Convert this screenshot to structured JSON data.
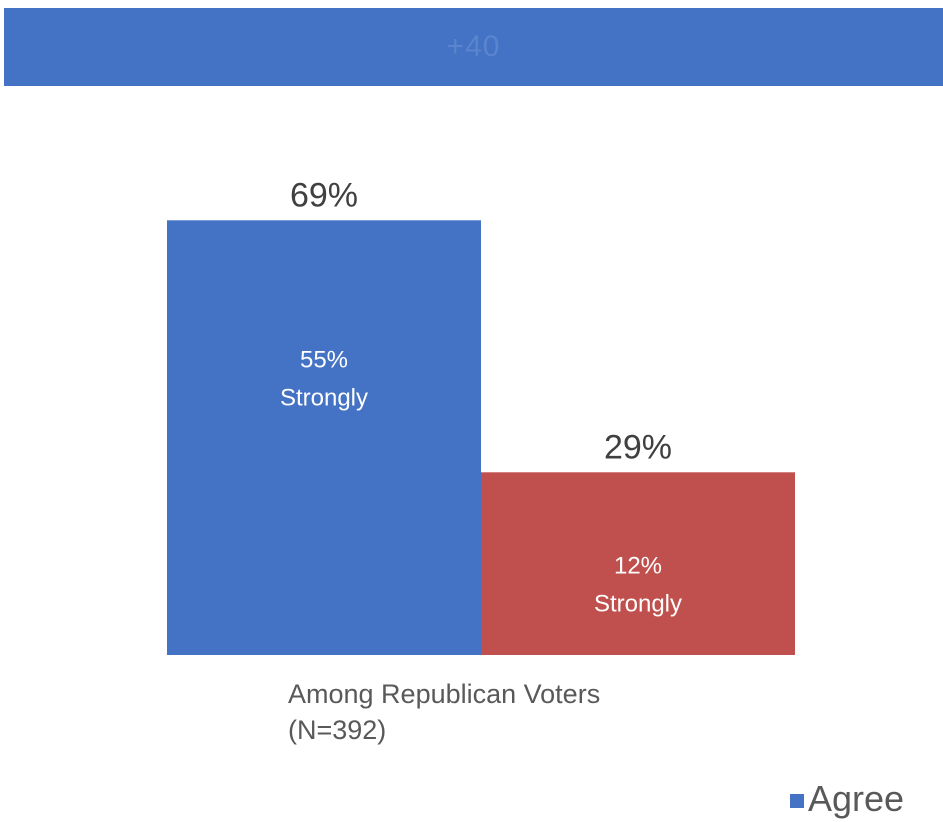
{
  "banner": {
    "text": "+40",
    "background": "#4472c4",
    "text_color": "#5b84cf"
  },
  "chart_data": {
    "type": "bar",
    "categories": [
      "Among Republican Voters",
      "(N=392)"
    ],
    "ylim": [
      0,
      80
    ],
    "series": [
      {
        "name": "Agree",
        "value": 69,
        "value_label": "69%",
        "inner_label_value": "55%",
        "inner_label_text": "Strongly",
        "color": "#4472c4"
      },
      {
        "value": 29,
        "value_label": "29%",
        "inner_label_value": "12%",
        "inner_label_text": "Strongly",
        "color": "#c0504d"
      }
    ],
    "legend": {
      "position": "bottom-right",
      "entries": [
        "Agree"
      ]
    },
    "grid": false
  }
}
